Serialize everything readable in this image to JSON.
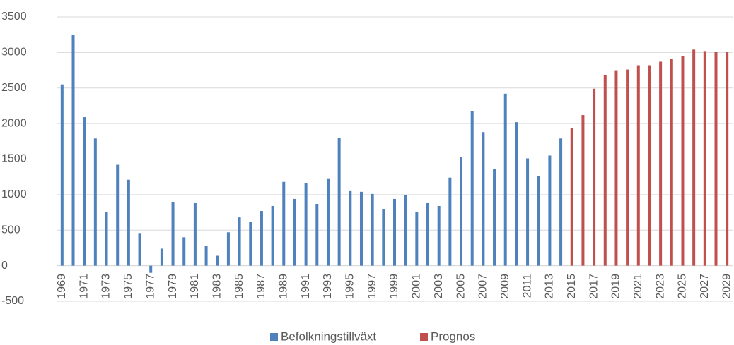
{
  "chart_data": {
    "type": "bar",
    "categories": [
      "1969",
      null,
      "1971",
      null,
      "1973",
      null,
      "1975",
      null,
      "1977",
      null,
      "1979",
      null,
      "1981",
      null,
      "1983",
      null,
      "1985",
      null,
      "1987",
      null,
      "1989",
      null,
      "1991",
      null,
      "1993",
      null,
      "1995",
      null,
      "1997",
      null,
      "1999",
      null,
      "2001",
      null,
      "2003",
      null,
      "2005",
      null,
      "2007",
      null,
      "2009",
      null,
      "2011",
      null,
      "2013",
      null,
      "2015",
      null,
      "2017",
      null,
      "2019",
      null,
      "2021",
      null,
      "2023",
      null,
      "2025",
      null,
      "2027",
      null,
      "2029"
    ],
    "series": [
      {
        "name": "Befolkningstillväxt",
        "color": "#4f81bd",
        "values": [
          2550,
          3250,
          2090,
          1790,
          760,
          1420,
          1210,
          460,
          -100,
          240,
          890,
          400,
          880,
          280,
          140,
          470,
          680,
          620,
          770,
          840,
          1180,
          940,
          1160,
          870,
          1220,
          1800,
          1050,
          1040,
          1010,
          800,
          940,
          990,
          760,
          880,
          840,
          1240,
          1530,
          2170,
          1880,
          1360,
          2420,
          2020,
          1510,
          1260,
          1550,
          1790,
          null,
          null,
          null,
          null,
          null,
          null,
          null,
          null,
          null,
          null,
          null,
          null,
          null,
          null,
          null
        ]
      },
      {
        "name": "Prognos",
        "color": "#c0504d",
        "values": [
          null,
          null,
          null,
          null,
          null,
          null,
          null,
          null,
          null,
          null,
          null,
          null,
          null,
          null,
          null,
          null,
          null,
          null,
          null,
          null,
          null,
          null,
          null,
          null,
          null,
          null,
          null,
          null,
          null,
          null,
          null,
          null,
          null,
          null,
          null,
          null,
          null,
          null,
          null,
          null,
          null,
          null,
          null,
          null,
          null,
          null,
          1940,
          2120,
          2490,
          2680,
          2750,
          2760,
          2820,
          2820,
          2870,
          2910,
          2950,
          3040,
          3020,
          3010,
          3010
        ]
      }
    ],
    "ylim": [
      -500,
      3500
    ],
    "yticks": [
      -500,
      0,
      500,
      1000,
      1500,
      2000,
      2500,
      3000,
      3500
    ],
    "grid": true,
    "legend": "bottom"
  }
}
